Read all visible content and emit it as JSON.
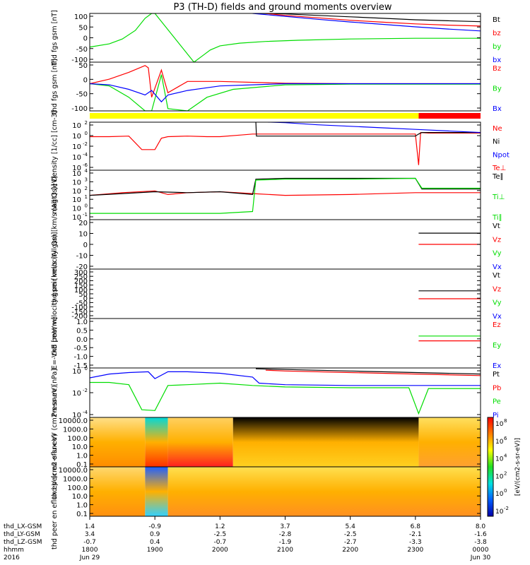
{
  "title": "P3 (TH-D) fields and ground moments overview",
  "footer": {
    "row_labels": [
      "thd_LX-GSM",
      "thd_LY-GSM",
      "thd_LZ-GSM",
      "hhmm",
      "2016"
    ],
    "columns": [
      {
        "lx": "1.4",
        "ly": "3.4",
        "lz": "-0.7",
        "hhmm": "1800",
        "date": "Jun 29"
      },
      {
        "lx": "-0.9",
        "ly": "0.9",
        "lz": "0.4",
        "hhmm": "1900",
        "date": ""
      },
      {
        "lx": "1.2",
        "ly": "-2.5",
        "lz": "-0.7",
        "hhmm": "2000",
        "date": ""
      },
      {
        "lx": "3.7",
        "ly": "-2.8",
        "lz": "-1.9",
        "hhmm": "2100",
        "date": ""
      },
      {
        "lx": "5.4",
        "ly": "-2.5",
        "lz": "-2.7",
        "hhmm": "2200",
        "date": ""
      },
      {
        "lx": "6.8",
        "ly": "-2.1",
        "lz": "-3.3",
        "hhmm": "2300",
        "date": ""
      },
      {
        "lx": "8.0",
        "ly": "-1.6",
        "lz": "-3.8",
        "hhmm": "0000",
        "date": "Jun 30"
      }
    ]
  },
  "status_bar": {
    "colors": [
      "#ffff00",
      "#ff0000"
    ],
    "switch_time_h": 5.05
  },
  "colorbar": {
    "label": "[eV/(cm2-s-sr-eV)]",
    "ticks": [
      "10^8",
      "10^6",
      "10^4",
      "10^2",
      "10^0",
      "10^-2"
    ]
  },
  "colors": {
    "black": "#000000",
    "red": "#ff0000",
    "green": "#00dd00",
    "blue": "#0000ff"
  },
  "chart_data": [
    {
      "id": "fgs",
      "type": "line",
      "ylabel": "thd fgs gsm [nT]",
      "ytick_labels": [
        "100",
        "50",
        "0",
        "-50",
        "-100"
      ],
      "ylim": [
        -100,
        100
      ],
      "x_range_h": [
        0,
        6
      ],
      "legend": [
        {
          "name": "Bt",
          "color": "#000000"
        },
        {
          "name": "bz",
          "color": "#ff0000"
        },
        {
          "name": "by",
          "color": "#00dd00"
        },
        {
          "name": "bx",
          "color": "#0000ff"
        }
      ],
      "series": [
        {
          "name": "Bt",
          "color": "#000000",
          "x": [
            2.55,
            3.0,
            3.5,
            4.0,
            4.5,
            5.0,
            5.5,
            6.0
          ],
          "y": [
            100,
            98,
            92,
            86,
            80,
            74,
            70,
            66
          ]
        },
        {
          "name": "bz",
          "color": "#ff0000",
          "x": [
            2.7,
            3.0,
            3.5,
            4.0,
            4.5,
            5.0,
            5.5,
            6.0
          ],
          "y": [
            100,
            92,
            82,
            72,
            64,
            57,
            52,
            48
          ]
        },
        {
          "name": "by",
          "color": "#00dd00",
          "x": [
            0.0,
            0.3,
            0.5,
            0.7,
            0.85,
            0.95,
            1.0,
            1.6,
            1.75,
            1.85,
            2.0,
            2.3,
            2.7,
            3.2,
            4.0,
            5.0,
            6.0
          ],
          "y": [
            -38,
            -25,
            -5,
            30,
            80,
            100,
            100,
            -100,
            -70,
            -50,
            -33,
            -22,
            -15,
            -10,
            -5,
            -2,
            -2
          ]
        },
        {
          "name": "bx",
          "color": "#0000ff",
          "x": [
            2.5,
            3.0,
            3.5,
            4.0,
            4.5,
            5.0,
            5.5,
            6.0
          ],
          "y": [
            100,
            88,
            76,
            65,
            55,
            45,
            36,
            28
          ]
        }
      ]
    },
    {
      "id": "fgs_bfield",
      "type": "line",
      "ylabel": "thd fgs gsm [nT]",
      "ytick_labels": [
        "50",
        "0",
        "-50",
        "-100"
      ],
      "ylim": [
        -120,
        95
      ],
      "x_range_h": [
        0,
        6
      ],
      "legend": [
        {
          "name": "Bz",
          "color": "#ff0000"
        },
        {
          "name": "By",
          "color": "#00dd00"
        },
        {
          "name": "Bx",
          "color": "#0000ff"
        }
      ],
      "series": [
        {
          "name": "Bz",
          "color": "#ff0000",
          "x": [
            0.0,
            0.3,
            0.6,
            0.85,
            0.9,
            0.95,
            1.1,
            1.2,
            1.5,
            2.0,
            3.0,
            4.0,
            5.0,
            6.0
          ],
          "y": [
            0,
            20,
            50,
            80,
            70,
            -60,
            60,
            -40,
            10,
            10,
            2,
            0,
            0,
            0
          ]
        },
        {
          "name": "By",
          "color": "#00dd00",
          "x": [
            0.0,
            0.3,
            0.6,
            0.85,
            0.95,
            1.1,
            1.2,
            1.5,
            1.8,
            2.2,
            3.0,
            4.0,
            5.0,
            6.0
          ],
          "y": [
            0,
            -10,
            -60,
            -120,
            -120,
            40,
            -110,
            -120,
            -60,
            -25,
            -5,
            -2,
            -2,
            -2
          ]
        },
        {
          "name": "Bx",
          "color": "#0000ff",
          "x": [
            0.0,
            0.3,
            0.6,
            0.85,
            0.95,
            1.1,
            1.2,
            1.5,
            2.0,
            3.0,
            4.0,
            5.0,
            6.0
          ],
          "y": [
            0,
            -5,
            -25,
            -50,
            -30,
            -80,
            -50,
            -30,
            -10,
            0,
            0,
            0,
            0
          ]
        }
      ]
    },
    {
      "id": "density",
      "type": "line",
      "yscale": "log",
      "ylabel": "Density [1/cc] [cm-3]",
      "ytick_labels": [
        "10^2",
        "10^0",
        "10^-2",
        "10^-4",
        "10^-6"
      ],
      "ylim_log10": [
        -7,
        2.3
      ],
      "x_range_h": [
        0,
        6
      ],
      "legend": [
        {
          "name": "Ne",
          "color": "#ff0000"
        },
        {
          "name": "Ni",
          "color": "#000000"
        },
        {
          "name": "Npot",
          "color": "#0000ff"
        },
        {
          "name": "Te⊥",
          "color": "#ff0000"
        }
      ],
      "series": [
        {
          "name": "Ne",
          "color": "#ff0000",
          "log10": true,
          "x": [
            0.0,
            0.3,
            0.6,
            0.8,
            1.0,
            1.1,
            1.2,
            1.5,
            1.8,
            2.0,
            2.3,
            2.5,
            3.0,
            3.5,
            4.0,
            4.5,
            5.0,
            5.05,
            5.08,
            5.2,
            6.0
          ],
          "y": [
            -0.5,
            -0.5,
            -0.4,
            -3.0,
            -3.0,
            -0.8,
            -0.5,
            -0.4,
            -0.5,
            -0.5,
            -0.2,
            0.0,
            0.0,
            0.0,
            0.0,
            0.0,
            0.0,
            -6.0,
            0.3,
            0.2,
            0.2
          ]
        },
        {
          "name": "Ni",
          "color": "#000000",
          "log10": true,
          "x": [
            2.55,
            2.56,
            3.0,
            4.0,
            5.0,
            5.05,
            5.1,
            6.0
          ],
          "y": [
            2.5,
            -0.4,
            -0.4,
            -0.4,
            -0.4,
            0.0,
            0.3,
            0.3
          ]
        },
        {
          "name": "Npot",
          "color": "#0000ff",
          "log10": true,
          "x": [
            2.55,
            3.0,
            3.5,
            4.0,
            4.5,
            5.0,
            5.5,
            6.0
          ],
          "y": [
            2.4,
            2.2,
            1.8,
            1.5,
            1.2,
            0.9,
            0.6,
            0.3
          ]
        }
      ]
    },
    {
      "id": "temperature",
      "type": "line",
      "yscale": "log",
      "ylabel": "magt3 [eV]",
      "ytick_labels": [
        "10^4",
        "10^3",
        "10^2",
        "10^1",
        "10^0",
        "10^-1"
      ],
      "ylim_log10": [
        -1.2,
        4.3
      ],
      "x_range_h": [
        0,
        6
      ],
      "legend": [
        {
          "name": "Te∥",
          "color": "#000000"
        },
        {
          "name": "Ti⊥",
          "color": "#00dd00"
        },
        {
          "name": "Ti∥",
          "color": "#00dd00"
        }
      ],
      "series": [
        {
          "name": "Te",
          "color": "#ff0000",
          "log10": true,
          "x": [
            0.0,
            0.5,
            1.0,
            1.2,
            1.5,
            2.0,
            2.5,
            3.0,
            4.0,
            5.0,
            6.0
          ],
          "y": [
            1.5,
            1.8,
            2.0,
            1.6,
            1.8,
            1.9,
            1.7,
            1.5,
            1.6,
            1.8,
            1.8
          ]
        },
        {
          "name": "Te∥",
          "color": "#000000",
          "log10": true,
          "x": [
            0.0,
            0.5,
            1.0,
            1.5,
            2.0,
            2.5,
            2.55,
            3.0,
            4.0,
            5.0,
            5.1,
            6.0
          ],
          "y": [
            1.5,
            1.7,
            1.9,
            1.8,
            1.9,
            1.6,
            3.3,
            3.4,
            3.4,
            3.4,
            2.2,
            2.2
          ]
        },
        {
          "name": "Ti∥",
          "color": "#00dd00",
          "log10": true,
          "x": [
            0.0,
            0.5,
            1.0,
            1.5,
            2.0,
            2.5,
            2.55,
            3.0,
            4.0,
            5.0,
            5.1,
            6.0
          ],
          "y": [
            -0.5,
            -0.5,
            -0.5,
            -0.5,
            -0.5,
            -0.3,
            3.2,
            3.3,
            3.3,
            3.4,
            2.3,
            2.3
          ]
        }
      ]
    },
    {
      "id": "peir_velocity",
      "type": "line",
      "ylabel": "thd peir velocity gsm [km/s (All Qs)]",
      "ytick_labels": [
        "20",
        "10",
        "0",
        "-10",
        "-20"
      ],
      "ylim": [
        -22,
        22
      ],
      "x_range_h": [
        0,
        6
      ],
      "legend": [
        {
          "name": "Vt",
          "color": "#000000"
        },
        {
          "name": "Vz",
          "color": "#ff0000"
        },
        {
          "name": "Vy",
          "color": "#00dd00"
        },
        {
          "name": "Vx",
          "color": "#0000ff"
        }
      ],
      "series": [
        {
          "name": "Vt",
          "color": "#000000",
          "x": [
            5.05,
            6.0
          ],
          "y": [
            10,
            10
          ]
        },
        {
          "name": "Vz",
          "color": "#ff0000",
          "x": [
            5.05,
            6.0
          ],
          "y": [
            0,
            0
          ]
        }
      ]
    },
    {
      "id": "peer_velocity",
      "type": "line",
      "ylabel": "thd peer velocity gsm [km/s (All Qs)]",
      "ytick_labels": [
        "300",
        "250",
        "200",
        "150",
        "100",
        "50",
        "0",
        "-50",
        "-100",
        "-150",
        "-200"
      ],
      "ylim": [
        -200,
        300
      ],
      "x_range_h": [
        0,
        6
      ],
      "legend": [
        {
          "name": "Vt",
          "color": "#000000"
        },
        {
          "name": "Vz",
          "color": "#ff0000"
        },
        {
          "name": "Vy",
          "color": "#00dd00"
        },
        {
          "name": "Vx",
          "color": "#0000ff"
        }
      ],
      "series": [
        {
          "name": "Vt",
          "color": "#000000",
          "x": [
            5.05,
            6.0
          ],
          "y": [
            80,
            80
          ]
        },
        {
          "name": "Vz",
          "color": "#ff0000",
          "x": [
            5.05,
            6.0
          ],
          "y": [
            0,
            0
          ]
        }
      ]
    },
    {
      "id": "efield",
      "type": "line",
      "ylabel": "E=-VxB [mV/m]",
      "ytick_labels": [
        "1.0",
        "0.5",
        "0.0",
        "-0.5",
        "-1.0",
        "-1.5"
      ],
      "ylim": [
        -1.6,
        1.5
      ],
      "x_range_h": [
        0,
        6
      ],
      "legend": [
        {
          "name": "Ez",
          "color": "#ff0000"
        },
        {
          "name": "Ey",
          "color": "#00dd00"
        },
        {
          "name": "Ex",
          "color": "#0000ff"
        }
      ],
      "series": [
        {
          "name": "Ez",
          "color": "#ff0000",
          "x": [
            5.05,
            6.0
          ],
          "y": [
            0.1,
            0.1
          ]
        },
        {
          "name": "Ey",
          "color": "#00dd00",
          "x": [
            5.05,
            6.0
          ],
          "y": [
            0.4,
            0.4
          ]
        }
      ]
    },
    {
      "id": "pressure",
      "type": "line",
      "yscale": "log",
      "ylabel": "Pressure [nPa]",
      "ytick_labels": [
        "10^0",
        "10^-2",
        "10^-4"
      ],
      "ylim_log10": [
        -5.5,
        1.0
      ],
      "x_range_h": [
        0,
        6
      ],
      "legend": [
        {
          "name": "Pt",
          "color": "#000000"
        },
        {
          "name": "Pb",
          "color": "#ff0000"
        },
        {
          "name": "Pe",
          "color": "#00dd00"
        },
        {
          "name": "Pi",
          "color": "#0000ff"
        }
      ],
      "series": [
        {
          "name": "Pt",
          "color": "#000000",
          "log10": true,
          "x": [
            2.55,
            3.0,
            4.0,
            5.0,
            6.0
          ],
          "y": [
            0.9,
            0.8,
            0.6,
            0.4,
            0.2
          ]
        },
        {
          "name": "Pb",
          "color": "#ff0000",
          "log10": true,
          "x": [
            2.7,
            3.0,
            4.0,
            5.0,
            6.0
          ],
          "y": [
            0.7,
            0.6,
            0.4,
            0.2,
            0.0
          ]
        },
        {
          "name": "Pi",
          "color": "#0000ff",
          "log10": true,
          "x": [
            0.0,
            0.3,
            0.6,
            0.9,
            1.0,
            1.2,
            1.5,
            2.0,
            2.5,
            2.6,
            3.0,
            4.0,
            5.0,
            6.0
          ],
          "y": [
            -0.3,
            0.2,
            0.4,
            0.5,
            -0.4,
            0.5,
            0.5,
            0.3,
            -0.2,
            -1.0,
            -1.2,
            -1.3,
            -1.3,
            -1.3
          ]
        },
        {
          "name": "Pe",
          "color": "#00dd00",
          "log10": true,
          "x": [
            0.0,
            0.3,
            0.6,
            0.8,
            1.0,
            1.2,
            1.5,
            2.0,
            2.5,
            3.0,
            4.0,
            4.9,
            5.05,
            5.2,
            6.0
          ],
          "y": [
            -0.9,
            -0.9,
            -1.2,
            -4.5,
            -4.6,
            -1.3,
            -1.2,
            -1.0,
            -1.3,
            -1.5,
            -1.6,
            -1.6,
            -5.0,
            -1.7,
            -1.7
          ]
        }
      ]
    },
    {
      "id": "peir_spectrogram",
      "type": "heatmap",
      "ylabel": "thd peir en eflux eV (cm2-s-sr-eV)",
      "ytick_labels": [
        "10000.0",
        "1000.0",
        "100.0",
        "10.0",
        "1.0",
        "0.1"
      ],
      "ylim_log10": [
        -1.2,
        4.4
      ],
      "segments": [
        {
          "x0": 0.0,
          "x1": 0.85,
          "low_color": "#ff8c00",
          "high_color": "#ffe08a"
        },
        {
          "x0": 0.85,
          "x1": 1.2,
          "low_color": "#ff3000",
          "high_color": "#00d9d9"
        },
        {
          "x0": 1.2,
          "x1": 2.2,
          "low_color": "#ff2020",
          "high_color": "#ffd060"
        },
        {
          "x0": 2.2,
          "x1": 5.05,
          "low_color": "#ffd020",
          "high_color": "#000000"
        },
        {
          "x0": 5.05,
          "x1": 6.0,
          "low_color": "#ffa030",
          "high_color": "#ffe060"
        }
      ]
    },
    {
      "id": "peer_spectrogram",
      "type": "heatmap",
      "ylabel": "thd peer en eflux eV (cm2-s-sr-eV)",
      "ytick_labels": [
        "10000.0",
        "1000.0",
        "100.0",
        "10.0",
        "1.0",
        "0.1"
      ],
      "ylim_log10": [
        -1.2,
        4.4
      ],
      "segments": [
        {
          "x0": 0.0,
          "x1": 0.85,
          "low_color": "#ff9010",
          "high_color": "#ffd870"
        },
        {
          "x0": 0.85,
          "x1": 1.2,
          "low_color": "#30d0ff",
          "high_color": "#2060ff"
        },
        {
          "x0": 1.2,
          "x1": 6.0,
          "low_color": "#ff9020",
          "high_color": "#ffe050"
        }
      ]
    }
  ]
}
